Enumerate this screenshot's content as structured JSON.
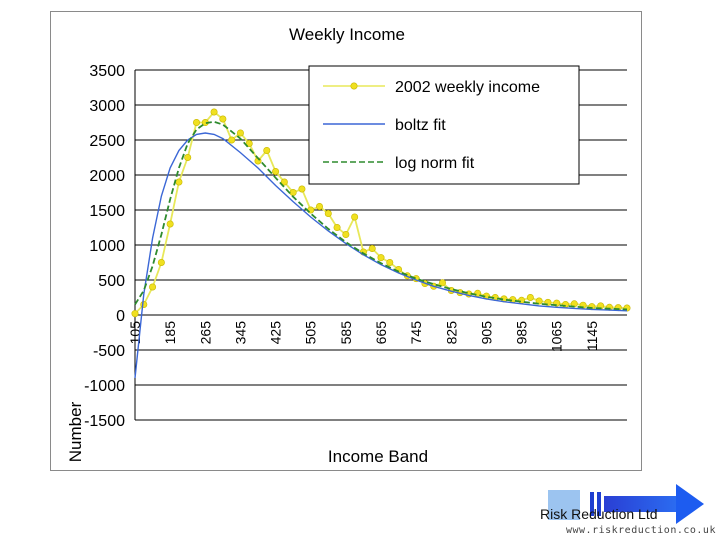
{
  "chart_data": {
    "type": "line",
    "title": "Weekly Income",
    "xlabel": "Income Band",
    "ylabel": "Number",
    "ylim": [
      -1500,
      3500
    ],
    "yticks": [
      "3500",
      "3000",
      "2500",
      "2000",
      "1500",
      "1000",
      "500",
      "0",
      "-500",
      "-1000",
      "-1500"
    ],
    "xlim": [
      105,
      1225
    ],
    "xticks": [
      "105",
      "185",
      "265",
      "345",
      "425",
      "505",
      "585",
      "665",
      "745",
      "825",
      "905",
      "985",
      "1065",
      "1145"
    ],
    "grid": "horizontal",
    "legend_position": "top-right",
    "series": [
      {
        "name": "2002 weekly income",
        "style": "line-with-markers",
        "color": "#e8e85a",
        "marker_color": "#f0e020",
        "x": [
          105,
          125,
          145,
          165,
          185,
          205,
          225,
          245,
          265,
          285,
          305,
          325,
          345,
          365,
          385,
          405,
          425,
          445,
          465,
          485,
          505,
          525,
          545,
          565,
          585,
          605,
          625,
          645,
          665,
          685,
          705,
          725,
          745,
          765,
          785,
          805,
          825,
          845,
          865,
          885,
          905,
          925,
          945,
          965,
          985,
          1005,
          1025,
          1045,
          1065,
          1085,
          1105,
          1125,
          1145,
          1165,
          1185,
          1205,
          1225
        ],
        "y": [
          20,
          150,
          400,
          750,
          1300,
          1900,
          2250,
          2750,
          2750,
          2900,
          2800,
          2500,
          2600,
          2450,
          2200,
          2350,
          2050,
          1900,
          1750,
          1800,
          1500,
          1550,
          1450,
          1250,
          1150,
          1400,
          900,
          950,
          820,
          750,
          650,
          560,
          520,
          450,
          410,
          460,
          350,
          320,
          300,
          310,
          270,
          250,
          230,
          220,
          210,
          250,
          200,
          180,
          170,
          150,
          160,
          140,
          120,
          130,
          110,
          105,
          100
        ]
      },
      {
        "name": "boltz fit",
        "style": "solid",
        "color": "#3b67d6",
        "x": [
          105,
          115,
          125,
          145,
          165,
          185,
          205,
          225,
          245,
          265,
          285,
          305,
          345,
          385,
          425,
          465,
          505,
          545,
          585,
          625,
          665,
          705,
          745,
          785,
          825,
          865,
          905,
          945,
          985,
          1025,
          1065,
          1105,
          1145,
          1185,
          1225
        ],
        "y": [
          -900,
          -300,
          300,
          1100,
          1700,
          2100,
          2350,
          2500,
          2580,
          2600,
          2580,
          2520,
          2320,
          2100,
          1850,
          1620,
          1400,
          1200,
          1020,
          860,
          720,
          600,
          500,
          410,
          340,
          280,
          230,
          190,
          160,
          130,
          110,
          95,
          80,
          70,
          60
        ]
      },
      {
        "name": "log norm fit",
        "style": "dashed",
        "color": "#2e8b2e",
        "x": [
          105,
          125,
          145,
          165,
          185,
          205,
          225,
          245,
          265,
          285,
          305,
          345,
          385,
          425,
          465,
          505,
          545,
          585,
          625,
          665,
          705,
          745,
          785,
          825,
          865,
          905,
          945,
          985,
          1025,
          1065,
          1105,
          1145,
          1185,
          1225
        ],
        "y": [
          150,
          350,
          700,
          1150,
          1650,
          2100,
          2450,
          2650,
          2740,
          2760,
          2720,
          2520,
          2240,
          1960,
          1690,
          1450,
          1230,
          1040,
          880,
          740,
          620,
          520,
          440,
          370,
          310,
          260,
          220,
          190,
          160,
          140,
          120,
          100,
          90,
          80
        ]
      }
    ]
  },
  "footer": {
    "company": "Risk Reduction Ltd",
    "url": "www.riskreduction.co.uk"
  }
}
